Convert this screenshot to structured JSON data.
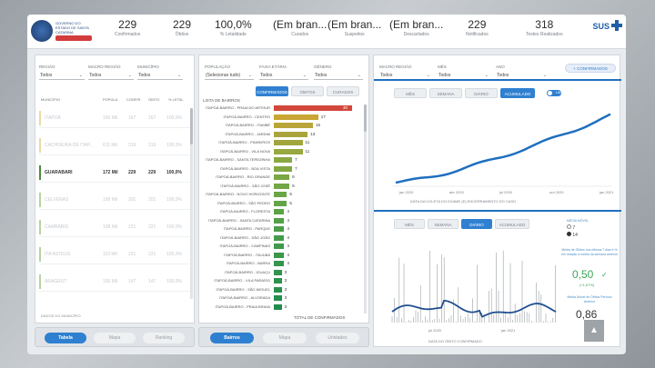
{
  "header": {
    "logo_text": "GOVERNO DO ESTADO DE SANTA CATARINA",
    "kpis": [
      {
        "value": "229",
        "label": "Confirmados"
      },
      {
        "value": "229",
        "label": "Óbitos"
      },
      {
        "value": "100,0%",
        "label": "% Letalidade"
      },
      {
        "value": "(Em bran...",
        "label": "Curados"
      },
      {
        "value": "(Em bran...",
        "label": "Suspeitos"
      },
      {
        "value": "(Em bran...",
        "label": "Descartados"
      },
      {
        "value": "229",
        "label": "Notificados"
      },
      {
        "value": "318",
        "label": "Testes Realizados"
      }
    ],
    "sus_label": "SUS"
  },
  "left_panel": {
    "filters": [
      {
        "label": "REGIÃO",
        "value": "Todos"
      },
      {
        "label": "MACRO REGIÃO",
        "value": "Todos"
      },
      {
        "label": "MUNICÍPIO",
        "value": "Todos"
      }
    ],
    "columns": [
      "MUNICÍPIO",
      "POPULA",
      "CONFIR",
      "ÓBITO",
      "% LETAL"
    ],
    "rows": [
      {
        "name": "ITAPOÁ",
        "pop": "166 Mil",
        "conf": "167",
        "obit": "167",
        "let": "100,0%",
        "mark": "#e8d9a8",
        "selected": false
      },
      {
        "name": "CACHOEIRA DE ITAP...",
        "pop": "611 Mil",
        "conf": "319",
        "obit": "319",
        "let": "100,0%",
        "mark": "#e8d9a8",
        "selected": false
      },
      {
        "name": "GUARABARI",
        "pop": "172 Mil",
        "conf": "229",
        "obit": "229",
        "let": "100,0%",
        "mark": "#4c8a3c",
        "selected": true
      },
      {
        "name": "CELVENAS",
        "pop": "198 Mil",
        "conf": "201",
        "obit": "201",
        "let": "100,0%",
        "mark": "#b7d3a0",
        "selected": false
      },
      {
        "name": "CAMBARIS",
        "pop": "108 Mil",
        "conf": "221",
        "obit": "221",
        "let": "100,0%",
        "mark": "#b7d3a0",
        "selected": false
      },
      {
        "name": "ITA'ASTEUS",
        "pop": "110 Mil",
        "conf": "221",
        "obit": "221",
        "let": "100,0%",
        "mark": "#b7d3a0",
        "selected": false
      },
      {
        "name": "ARAGRUT",
        "pop": "106 Mil",
        "conf": "147",
        "obit": "147",
        "let": "100,0%",
        "mark": "#b7d3a0",
        "selected": false
      }
    ],
    "footer": "DADOS DO MUNICÍPIO",
    "buttons": [
      "Tabela",
      "Mapa",
      "Ranking"
    ]
  },
  "middle_panel": {
    "filters": [
      {
        "label": "POPULAÇÃO",
        "value": "(Selecionar tudo)"
      },
      {
        "label": "FAIXA ETÁRIA",
        "value": "Todos"
      },
      {
        "label": "GÊNERO",
        "value": "Todos"
      }
    ],
    "title": "LISTA DE BAIRROS",
    "tabs": [
      "CONFIRMADOS",
      "ÓBITOS",
      "CURADOS"
    ],
    "bars": [
      {
        "label": "ITAPOÁ-BAIRRO - PRAIA DO ARTHUR",
        "value": 30,
        "color": "#d2473b"
      },
      {
        "label": "ITAPOÁ-BAIRRO - CENTRO",
        "value": 17,
        "color": "#c9a534"
      },
      {
        "label": "ITAPOÁ-BAIRRO - ITAMBÉ",
        "value": 15,
        "color": "#b9a53a"
      },
      {
        "label": "ITAPOÁ-BAIRRO - JARDIM",
        "value": 13,
        "color": "#a9a53c"
      },
      {
        "label": "ITAPOÁ-BAIRRO - PINHEIROS",
        "value": 11,
        "color": "#a0a63d"
      },
      {
        "label": "ITAPOÁ-BAIRRO - VILA NOVA",
        "value": 11,
        "color": "#96a83f"
      },
      {
        "label": "ITAPOÁ-BAIRRO - SANTA TEREZINHA",
        "value": 7,
        "color": "#8aa841"
      },
      {
        "label": "ITAPOÁ-BAIRRO - BOA VISTA",
        "value": 7,
        "color": "#82a842"
      },
      {
        "label": "ITAPOÁ-BAIRRO - RIO GRANDE",
        "value": 6,
        "color": "#7aa843"
      },
      {
        "label": "ITAPOÁ-BAIRRO - SÃO JOSÉ",
        "value": 6,
        "color": "#72a744"
      },
      {
        "label": "ITAPOÁ-BAIRRO - NOVO HORIZONTE",
        "value": 5,
        "color": "#6aa645"
      },
      {
        "label": "ITAPOÁ-BAIRRO - SÃO PEDRO",
        "value": 5,
        "color": "#62a446"
      },
      {
        "label": "ITAPOÁ-BAIRRO - FLORESTA",
        "value": 4,
        "color": "#5ba247"
      },
      {
        "label": "ITAPOÁ-BAIRRO - SANTA CATARINA",
        "value": 4,
        "color": "#53a048"
      },
      {
        "label": "ITAPOÁ-BAIRRO - PARQUE",
        "value": 4,
        "color": "#4c9e49"
      },
      {
        "label": "ITAPOÁ-BAIRRO - SÃO JOÃO",
        "value": 4,
        "color": "#469c4a"
      },
      {
        "label": "ITAPOÁ-BAIRRO - CAMPINAS",
        "value": 4,
        "color": "#409a4b"
      },
      {
        "label": "ITAPOÁ-BAIRRO - ITAJUBÁ",
        "value": 4,
        "color": "#3b984b"
      },
      {
        "label": "ITAPOÁ-BAIRRO - BARRA",
        "value": 4,
        "color": "#36964c"
      },
      {
        "label": "ITAPOÁ-BAIRRO - IGUAÇU",
        "value": 3,
        "color": "#32944c"
      },
      {
        "label": "ITAPOÁ-BAIRRO - VILA PARAÍSO",
        "value": 3,
        "color": "#2e924c"
      },
      {
        "label": "ITAPOÁ-BAIRRO - SÃO MIGUEL",
        "value": 3,
        "color": "#2a904c"
      },
      {
        "label": "ITAPOÁ-BAIRRO - ALVORADA",
        "value": 3,
        "color": "#268e4c"
      },
      {
        "label": "ITAPOÁ-BAIRRO - PRAIA BRAVA",
        "value": 3,
        "color": "#228c4c"
      }
    ],
    "total_label": "TOTAL DE CONFIRMADOS",
    "buttons": [
      "Bairros",
      "Mapa",
      "Unidades"
    ]
  },
  "right_panel": {
    "filters": [
      {
        "label": "MACRO REGIÃO",
        "value": "Todos"
      },
      {
        "label": "MÊS",
        "value": "Todos"
      },
      {
        "label": "ANO",
        "value": "Todos"
      }
    ],
    "add_label": "+",
    "add_button_label": "CONFIRMADOS",
    "top_tabs": [
      "MÊS",
      "SEMANA",
      "DIÁRIO",
      "ACUMULADO"
    ],
    "toggle_label": "LIN",
    "top_chart": {
      "x_labels": [
        "jan 2020",
        "abr 2020",
        "jul 2020",
        "out 2020",
        "jan 2021"
      ],
      "caption": "DATA DA COLETA DO EXAME (E) ENCERRAMENTO DO CASO"
    },
    "bottom_tabs": [
      "MÊS",
      "SEMANA",
      "DIÁRIO",
      "ACUMULADO"
    ],
    "legend_title": "MÉDIA MÓVEL",
    "legend_items": [
      "7",
      "14"
    ],
    "bottom_chart": {
      "x_labels": [
        "jul 2020",
        "jan 2021"
      ],
      "caption": "DATA DO ÓBITO CONFIRMADO"
    },
    "side_note_1": "Média de Óbitos nos últimos 7 dias e % em relação à média da semana anterior",
    "metric_1": "0,50",
    "metric_1_sub": "(+1,67%)",
    "side_note_2": "Média Móvel de Óbitos Período Anterior",
    "metric_2": "0,86"
  },
  "colors": {
    "accent": "#2f80d0",
    "line": "#1f6fbf",
    "green_metric": "#3aa655"
  }
}
